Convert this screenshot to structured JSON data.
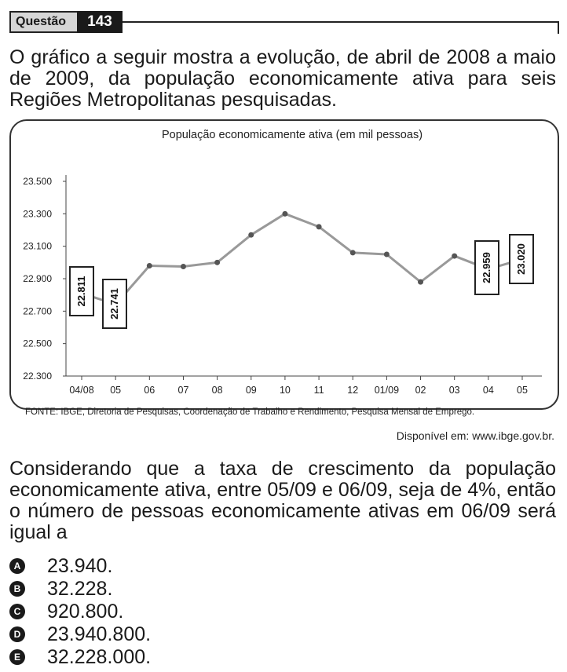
{
  "header": {
    "label": "Questão",
    "number": "143"
  },
  "intro": "O gráfico a seguir mostra a evolução, de abril de 2008 a maio de 2009, da população economicamente ativa para seis Regiões Metropolitanas pesquisadas.",
  "chart_data": {
    "type": "line",
    "title": "População economicamente ativa (em mil pessoas)",
    "categories": [
      "04/08",
      "05",
      "06",
      "07",
      "08",
      "09",
      "10",
      "11",
      "12",
      "01/09",
      "02",
      "03",
      "04",
      "05"
    ],
    "values": [
      22811,
      22741,
      22980,
      22975,
      23000,
      23170,
      23300,
      23220,
      23060,
      23050,
      22880,
      23040,
      22959,
      23020
    ],
    "ylim": [
      22300,
      23500
    ],
    "yticks": [
      "23.500",
      "23.300",
      "23.100",
      "22.900",
      "22.700",
      "22.500",
      "22.300"
    ],
    "ytick_values": [
      23500,
      23300,
      23100,
      22900,
      22700,
      22500,
      22300
    ],
    "callouts": [
      {
        "index": 0,
        "label": "22.811"
      },
      {
        "index": 1,
        "label": "22.741"
      },
      {
        "index": 12,
        "label": "22.959"
      },
      {
        "index": 13,
        "label": "23.020"
      }
    ],
    "line_color": "#999999",
    "marker_color": "#555555"
  },
  "source": "FONTE: IBGE, Diretoria de Pesquisas, Coordenação de Trabalho e Rendimento, Pesquisa Mensal de Emprego.",
  "available": "Disponível em: www.ibge.gov.br.",
  "question": "Considerando que a taxa de crescimento da população economicamente ativa, entre 05/09 e 06/09, seja de 4%, então o número de pessoas economicamente ativas em 06/09 será igual a",
  "options": [
    {
      "letter": "A",
      "text": "23.940."
    },
    {
      "letter": "B",
      "text": "32.228."
    },
    {
      "letter": "C",
      "text": "920.800."
    },
    {
      "letter": "D",
      "text": "23.940.800."
    },
    {
      "letter": "E",
      "text": "32.228.000."
    }
  ]
}
